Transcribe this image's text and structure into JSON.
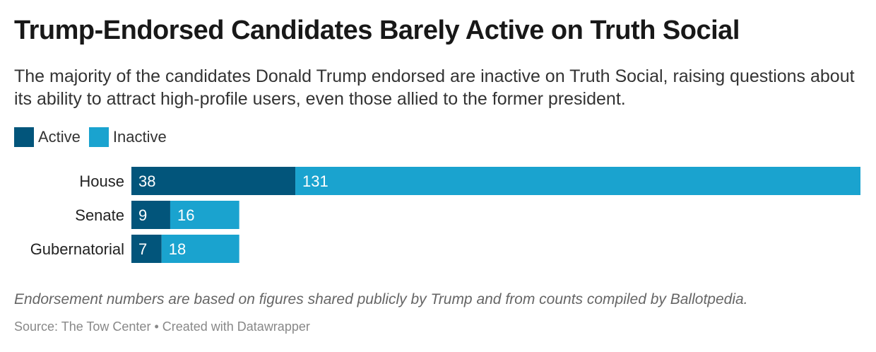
{
  "chart_data": {
    "type": "bar",
    "orientation": "horizontal",
    "stacked": true,
    "title": "Trump-Endorsed Candidates Barely Active on Truth Social",
    "subtitle": "The majority of the candidates Donald Trump endorsed are inactive on Truth Social, raising questions about its ability to attract high-profile users, even those allied to the former president.",
    "categories": [
      "House",
      "Senate",
      "Gubernatorial"
    ],
    "series": [
      {
        "name": "Active",
        "values": [
          38,
          9,
          7
        ],
        "color": "#02557b"
      },
      {
        "name": "Inactive",
        "values": [
          131,
          16,
          18
        ],
        "color": "#1aa3cf"
      }
    ],
    "xlim": [
      0,
      169
    ],
    "legend": "top-left",
    "grid": false
  },
  "notes": "Endorsement numbers are based on figures shared publicly by Trump and from counts compiled by Ballotpedia.",
  "source": "Source: The Tow Center • Created with Datawrapper"
}
